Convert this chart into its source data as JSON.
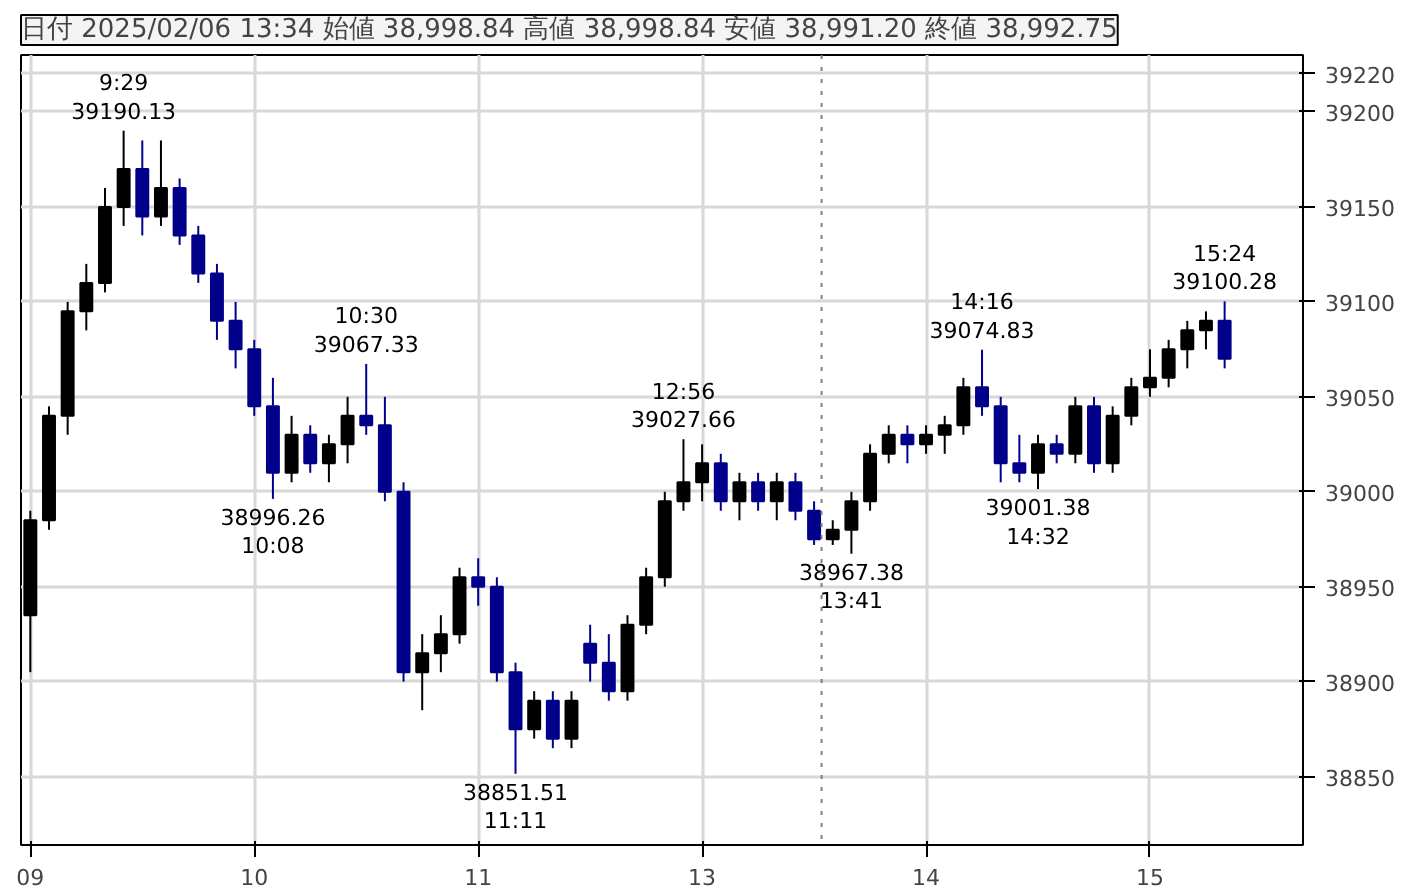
{
  "chart_data": {
    "type": "candlestick",
    "title": "日付 2025/02/06 13:34 始値 38,998.84 高値 38,998.84 安値 38,991.20 終値 38,992.75",
    "categories": [
      "09",
      null,
      null,
      null,
      null,
      null,
      null,
      null,
      null,
      null,
      null,
      null,
      "10",
      null,
      null,
      null,
      null,
      null,
      null,
      null,
      null,
      null,
      null,
      null,
      "11",
      null,
      null,
      null,
      null,
      null,
      null,
      null,
      null,
      null,
      null,
      null,
      "13",
      null,
      null,
      null,
      null,
      null,
      null,
      null,
      null,
      null,
      null,
      null,
      "14",
      null,
      null,
      null,
      null,
      null,
      null,
      null,
      null,
      null,
      null,
      null,
      "15",
      null,
      null,
      null,
      null
    ],
    "ohlc": [
      [
        38935,
        38990,
        38905,
        38985
      ],
      [
        38985,
        39045,
        38980,
        39040
      ],
      [
        39040,
        39100,
        39030,
        39095
      ],
      [
        39095,
        39120,
        39085,
        39110
      ],
      [
        39110,
        39160,
        39105,
        39150
      ],
      [
        39150,
        39190.13,
        39140,
        39170
      ],
      [
        39170,
        39185,
        39135,
        39145
      ],
      [
        39145,
        39185,
        39140,
        39160
      ],
      [
        39160,
        39165,
        39130,
        39135
      ],
      [
        39135,
        39140,
        39110,
        39115
      ],
      [
        39115,
        39120,
        39080,
        39090
      ],
      [
        39090,
        39100,
        39065,
        39075
      ],
      [
        39075,
        39080,
        39040,
        39045
      ],
      [
        39045,
        39060,
        38996.26,
        39010
      ],
      [
        39010,
        39040,
        39005,
        39030
      ],
      [
        39030,
        39035,
        39010,
        39015
      ],
      [
        39015,
        39030,
        39005,
        39025
      ],
      [
        39025,
        39050,
        39015,
        39040
      ],
      [
        39040,
        39067.33,
        39030,
        39035
      ],
      [
        39035,
        39050,
        38995,
        39000
      ],
      [
        39000,
        39005,
        38900,
        38905
      ],
      [
        38905,
        38925,
        38885,
        38915
      ],
      [
        38915,
        38935,
        38905,
        38925
      ],
      [
        38925,
        38960,
        38920,
        38955
      ],
      [
        38955,
        38965,
        38940,
        38950
      ],
      [
        38950,
        38955,
        38900,
        38905
      ],
      [
        38905,
        38910,
        38851.51,
        38875
      ],
      [
        38875,
        38895,
        38870,
        38890
      ],
      [
        38890,
        38895,
        38865,
        38870
      ],
      [
        38870,
        38895,
        38865,
        38890
      ],
      [
        38920,
        38930,
        38900,
        38910
      ],
      [
        38910,
        38925,
        38890,
        38895
      ],
      [
        38895,
        38935,
        38890,
        38930
      ],
      [
        38930,
        38960,
        38925,
        38955
      ],
      [
        38955,
        39000,
        38950,
        38995
      ],
      [
        38995,
        39027.66,
        38990,
        39005
      ],
      [
        39005,
        39025,
        38995,
        39015
      ],
      [
        39015,
        39020,
        38990,
        38995
      ],
      [
        38995,
        39010,
        38985,
        39005
      ],
      [
        39005,
        39010,
        38990,
        38995
      ],
      [
        38995,
        39010,
        38985,
        39005
      ],
      [
        39005,
        39010,
        38985,
        38990
      ],
      [
        38990,
        38995,
        38972,
        38975
      ],
      [
        38975,
        38985,
        38972,
        38980
      ],
      [
        38980,
        39000,
        38967.38,
        38995
      ],
      [
        38995,
        39025,
        38990,
        39020
      ],
      [
        39020,
        39035,
        39015,
        39030
      ],
      [
        39030,
        39035,
        39015,
        39025
      ],
      [
        39025,
        39035,
        39020,
        39030
      ],
      [
        39030,
        39040,
        39020,
        39035
      ],
      [
        39035,
        39060,
        39030,
        39055
      ],
      [
        39055,
        39074.83,
        39040,
        39045
      ],
      [
        39045,
        39050,
        39005,
        39015
      ],
      [
        39015,
        39030,
        39005,
        39010
      ],
      [
        39010,
        39030,
        39001.38,
        39025
      ],
      [
        39025,
        39030,
        39015,
        39020
      ],
      [
        39020,
        39050,
        39015,
        39045
      ],
      [
        39045,
        39050,
        39010,
        39015
      ],
      [
        39015,
        39045,
        39010,
        39040
      ],
      [
        39040,
        39060,
        39035,
        39055
      ],
      [
        39055,
        39075,
        39050,
        39060
      ],
      [
        39060,
        39080,
        39055,
        39075
      ],
      [
        39075,
        39090,
        39065,
        39085
      ],
      [
        39085,
        39095,
        39075,
        39090
      ],
      [
        39090,
        39100.28,
        39065,
        39070
      ]
    ],
    "ylim": [
      38814,
      39230
    ],
    "yticks": [
      38850,
      38900,
      38950,
      39000,
      39050,
      39100,
      39150,
      39200,
      39220
    ],
    "grid": true,
    "annotations": [
      {
        "text": "9:29\n39190.13",
        "y": 39190.13
      },
      {
        "text": "38996.26\n10:08",
        "y": 38996.26
      },
      {
        "text": "10:30\n39067.33",
        "y": 39067.33
      },
      {
        "text": "38851.51\n11:11",
        "y": 38851.51
      },
      {
        "text": "12:56\n39027.66",
        "y": 39027.66
      },
      {
        "text": "38967.38\n13:41",
        "y": 38967.38
      },
      {
        "text": "14:16\n39074.83",
        "y": 39074.83
      },
      {
        "text": "39001.38\n14:32",
        "y": 39001.38
      },
      {
        "text": "15:24\n39100.28",
        "y": 39100.28
      }
    ]
  }
}
